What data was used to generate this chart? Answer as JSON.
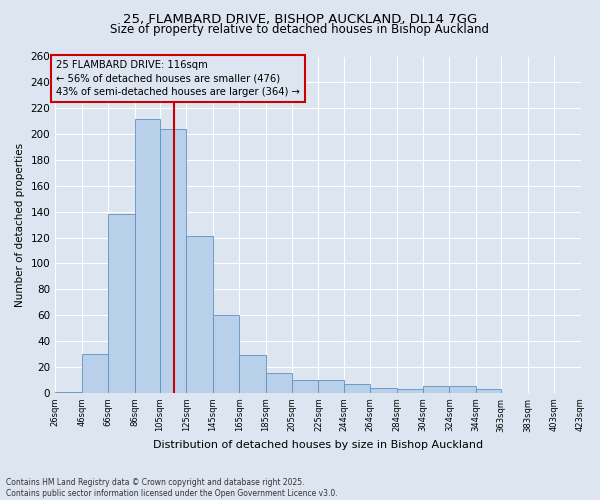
{
  "title_line1": "25, FLAMBARD DRIVE, BISHOP AUCKLAND, DL14 7GG",
  "title_line2": "Size of property relative to detached houses in Bishop Auckland",
  "xlabel": "Distribution of detached houses by size in Bishop Auckland",
  "ylabel": "Number of detached properties",
  "footnote1": "Contains HM Land Registry data © Crown copyright and database right 2025.",
  "footnote2": "Contains public sector information licensed under the Open Government Licence v3.0.",
  "annotation_line1": "25 FLAMBARD DRIVE: 116sqm",
  "annotation_line2": "← 56% of detached houses are smaller (476)",
  "annotation_line3": "43% of semi-detached houses are larger (364) →",
  "property_size": 116,
  "bar_edges": [
    26,
    46,
    66,
    86,
    105,
    125,
    145,
    165,
    185,
    205,
    225,
    244,
    264,
    284,
    304,
    324,
    344,
    363,
    383,
    403,
    423
  ],
  "bar_values": [
    1,
    30,
    138,
    212,
    204,
    121,
    60,
    29,
    15,
    10,
    10,
    7,
    4,
    3,
    5,
    5,
    3,
    0,
    0,
    0
  ],
  "bar_color": "#b8d0ea",
  "bar_edge_color": "#6090c0",
  "vline_color": "#cc0000",
  "vline_x": 116,
  "annotation_box_color": "#cc0000",
  "background_color": "#dde5f0",
  "grid_color": "#ffffff",
  "ylim": [
    0,
    260
  ],
  "yticks": [
    0,
    20,
    40,
    60,
    80,
    100,
    120,
    140,
    160,
    180,
    200,
    220,
    240,
    260
  ]
}
